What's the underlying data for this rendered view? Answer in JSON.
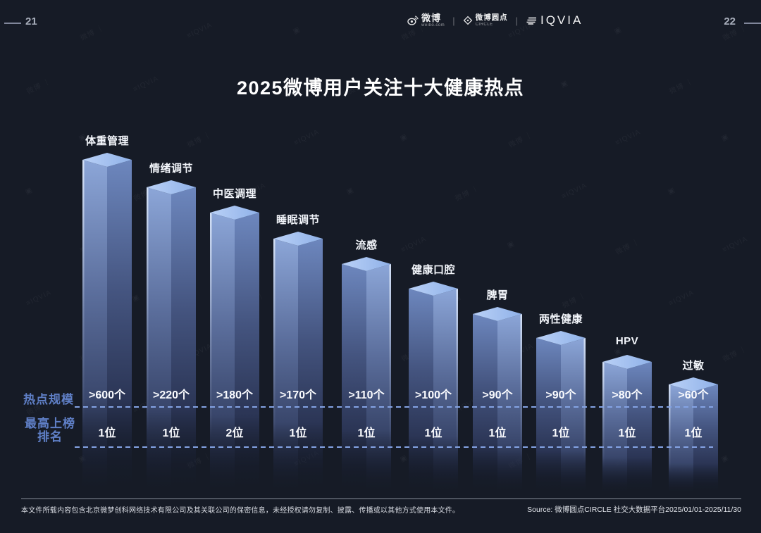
{
  "page": {
    "number_left": "21",
    "number_right": "22"
  },
  "header": {
    "weibo": {
      "name": "微博",
      "sub": "weibo.com"
    },
    "circle": {
      "name": "微博圆点",
      "sub": "CIRCLE"
    },
    "iqvia": {
      "name": "IQVIA"
    },
    "separator": "|"
  },
  "title": "2025微博用户关注十大健康热点",
  "chart_data": {
    "type": "bar",
    "title": "2025微博用户关注十大健康热点",
    "style": "3d-isometric-descending-columns",
    "grid": false,
    "legend": false,
    "categories": [
      "体重管理",
      "情绪调节",
      "中医调理",
      "睡眠调节",
      "流感",
      "健康口腔",
      "脾胃",
      "两性健康",
      "HPV",
      "过敏"
    ],
    "series": [
      {
        "name": "热点规模",
        "unit": "个",
        "values": [
          600,
          220,
          180,
          170,
          110,
          100,
          90,
          90,
          80,
          60
        ],
        "display": [
          ">600个",
          ">220个",
          ">180个",
          ">170个",
          ">110个",
          ">100个",
          ">90个",
          ">90个",
          ">80个",
          ">60个"
        ]
      },
      {
        "name": "最高上榜排名",
        "unit": "位",
        "values": [
          1,
          1,
          2,
          1,
          1,
          1,
          1,
          1,
          1,
          1
        ],
        "display": [
          "1位",
          "1位",
          "2位",
          "1位",
          "1位",
          "1位",
          "1位",
          "1位",
          "1位",
          "1位"
        ]
      }
    ]
  },
  "row_labels": {
    "scale": "热点规模",
    "rank_line1": "最高上榜",
    "rank_line2": "排名"
  },
  "footer": {
    "disclaimer": "本文件所载内容包含北京微梦创科网络技术有限公司及其关联公司的保密信息，未经授权请勿复制、披露、传播或以其他方式使用本文件。",
    "source": "Source: 微博圆点CIRCLE 社交大数据平台2025/01/01-2025/11/30"
  },
  "watermark": {
    "tokens": [
      "▣",
      "微博 ｜",
      "≡IQVIA"
    ]
  },
  "colors": {
    "background": "#161B26",
    "accent_blue": "#5F7FC6",
    "dashed_line": "#84A3E4",
    "bar_top": "#A9C5F1",
    "bar_face_light": "#8CA6D8",
    "bar_face_dark": "#6D87BE",
    "text": "#FFFFFF"
  }
}
